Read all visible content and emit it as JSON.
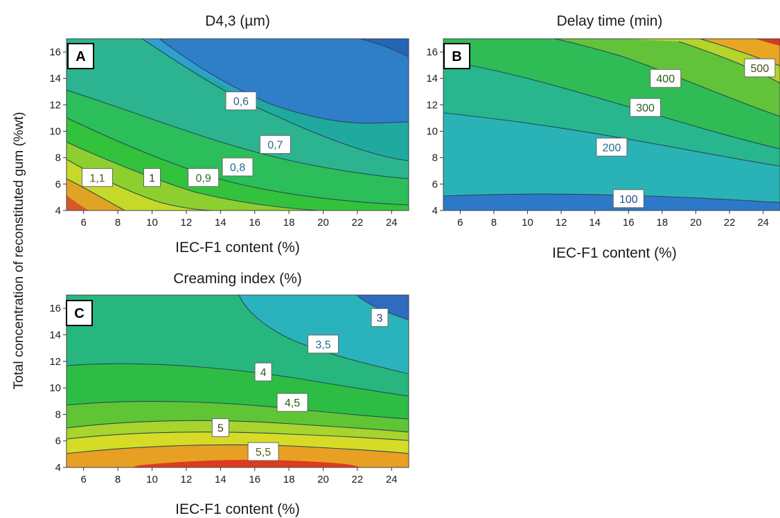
{
  "figure": {
    "shared_ylabel": "Total concentration of reconstituted gum (%wt)"
  },
  "chart_data": [
    {
      "type": "contour",
      "panel": "A",
      "title": "D4,3 (µm)",
      "xlabel": "IEC-F1 content (%)",
      "ylabel": "Total concentration of reconstituted gum (%wt)",
      "xlim": [
        5,
        25
      ],
      "ylim": [
        4,
        17
      ],
      "xticks": [
        6,
        8,
        10,
        12,
        14,
        16,
        18,
        20,
        22,
        24
      ],
      "yticks": [
        4,
        6,
        8,
        10,
        12,
        14,
        16
      ],
      "contour_levels": [
        0.6,
        0.7,
        0.8,
        0.9,
        1,
        1.1
      ],
      "contour_labels": [
        {
          "text": "0,6",
          "level": 0.6,
          "x": 15.2,
          "y": 12.3
        },
        {
          "text": "0,7",
          "level": 0.7,
          "x": 17.2,
          "y": 9.0
        },
        {
          "text": "0,8",
          "level": 0.8,
          "x": 15.0,
          "y": 7.3
        },
        {
          "text": "0,9",
          "level": 0.9,
          "x": 13.0,
          "y": 6.5
        },
        {
          "text": "1",
          "level": 1,
          "x": 10.0,
          "y": 6.5
        },
        {
          "text": "1,1",
          "level": 1.1,
          "x": 6.8,
          "y": 6.5
        }
      ]
    },
    {
      "type": "contour",
      "panel": "B",
      "title": "Delay time (min)",
      "xlabel": "IEC-F1 content (%)",
      "xlim": [
        5,
        25
      ],
      "ylim": [
        4,
        17
      ],
      "xticks": [
        6,
        8,
        10,
        12,
        14,
        16,
        18,
        20,
        22,
        24
      ],
      "yticks": [
        4,
        6,
        8,
        10,
        12,
        14,
        16
      ],
      "contour_levels": [
        100,
        200,
        300,
        400,
        500
      ],
      "contour_labels": [
        {
          "text": "100",
          "level": 100,
          "x": 16.0,
          "y": 4.9
        },
        {
          "text": "200",
          "level": 200,
          "x": 15.0,
          "y": 8.8
        },
        {
          "text": "300",
          "level": 300,
          "x": 17.0,
          "y": 11.8
        },
        {
          "text": "400",
          "level": 400,
          "x": 18.2,
          "y": 14.0
        },
        {
          "text": "500",
          "level": 500,
          "x": 23.8,
          "y": 14.8
        }
      ]
    },
    {
      "type": "contour",
      "panel": "C",
      "title": "Creaming index (%)",
      "xlabel": "IEC-F1 content (%)",
      "xlim": [
        5,
        25
      ],
      "ylim": [
        4,
        17
      ],
      "xticks": [
        6,
        8,
        10,
        12,
        14,
        16,
        18,
        20,
        22,
        24
      ],
      "yticks": [
        4,
        6,
        8,
        10,
        12,
        14,
        16
      ],
      "contour_levels": [
        3,
        3.5,
        4,
        4.5,
        5,
        5.5
      ],
      "contour_labels": [
        {
          "text": "3",
          "level": 3,
          "x": 23.3,
          "y": 15.3
        },
        {
          "text": "3,5",
          "level": 3.5,
          "x": 20.0,
          "y": 13.3
        },
        {
          "text": "4",
          "level": 4,
          "x": 16.5,
          "y": 11.2
        },
        {
          "text": "4,5",
          "level": 4.5,
          "x": 18.2,
          "y": 8.9
        },
        {
          "text": "5",
          "level": 5,
          "x": 14.0,
          "y": 7.0
        },
        {
          "text": "5,5",
          "level": 5.5,
          "x": 16.5,
          "y": 5.2
        }
      ]
    }
  ]
}
